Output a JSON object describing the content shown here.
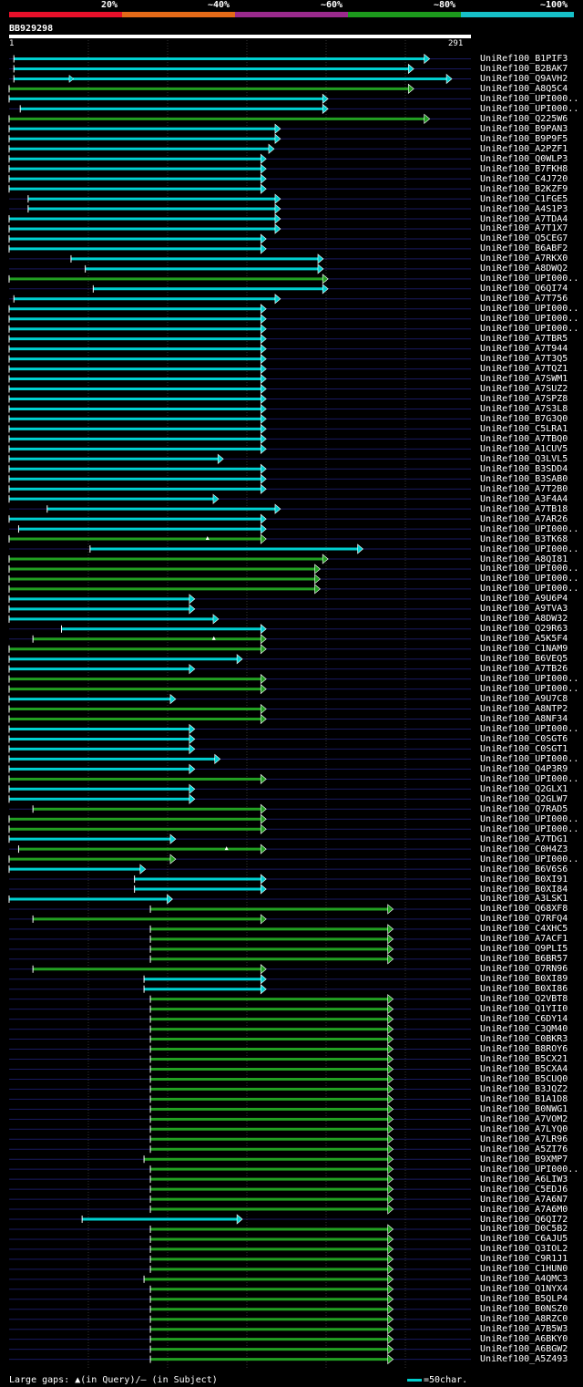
{
  "legend": {
    "segments": [
      {
        "label": "20%",
        "color": "#e8102a"
      },
      {
        "label": "~40%",
        "color": "#e46a18"
      },
      {
        "label": "~60%",
        "color": "#9a2a8c"
      },
      {
        "label": "~80%",
        "color": "#1c9a1c"
      },
      {
        "label": "~100%",
        "color": "#16c0c8"
      }
    ]
  },
  "query": {
    "name": "BB929298",
    "start": "1",
    "end": "291"
  },
  "colors": {
    "cyan": "#00d0d0",
    "green": "#22a022",
    "grid": "#1a1a60",
    "gridline": "#333333"
  },
  "chart_data": {
    "type": "alignment",
    "query_length": 291,
    "hits": [
      {
        "name": "UniRef100_B1PIF3",
        "start": 4,
        "end": 266,
        "color": "cyan"
      },
      {
        "name": "UniRef100_B2BAK7",
        "start": 4,
        "end": 256,
        "color": "cyan"
      },
      {
        "name": "UniRef100_Q9AVH2",
        "start": 4,
        "end": 280,
        "color": "cyan",
        "tick": 40
      },
      {
        "name": "UniRef100_A8Q5C4",
        "start": 1,
        "end": 256,
        "color": "green"
      },
      {
        "name": "UniRef100_UPI000..",
        "start": 1,
        "end": 202,
        "color": "cyan"
      },
      {
        "name": "UniRef100_UPI000..",
        "start": 8,
        "end": 202,
        "color": "cyan"
      },
      {
        "name": "UniRef100_Q225W6",
        "start": 1,
        "end": 266,
        "color": "green"
      },
      {
        "name": "UniRef100_B9PAN3",
        "start": 1,
        "end": 172,
        "color": "cyan"
      },
      {
        "name": "UniRef100_B9P9F5",
        "start": 1,
        "end": 172,
        "color": "cyan"
      },
      {
        "name": "UniRef100_A2PZF1",
        "start": 1,
        "end": 168,
        "color": "cyan"
      },
      {
        "name": "UniRef100_Q0WLP3",
        "start": 1,
        "end": 163,
        "color": "cyan"
      },
      {
        "name": "UniRef100_B7FKH8",
        "start": 1,
        "end": 163,
        "color": "cyan"
      },
      {
        "name": "UniRef100_C4J720",
        "start": 1,
        "end": 163,
        "color": "cyan"
      },
      {
        "name": "UniRef100_B2KZF9",
        "start": 1,
        "end": 163,
        "color": "cyan"
      },
      {
        "name": "UniRef100_C1FGE5",
        "start": 13,
        "end": 172,
        "color": "cyan"
      },
      {
        "name": "UniRef100_A4S1P3",
        "start": 13,
        "end": 172,
        "color": "cyan"
      },
      {
        "name": "UniRef100_A7TDA4",
        "start": 1,
        "end": 172,
        "color": "cyan"
      },
      {
        "name": "UniRef100_A7T1X7",
        "start": 1,
        "end": 172,
        "color": "cyan"
      },
      {
        "name": "UniRef100_Q5CEG7",
        "start": 1,
        "end": 163,
        "color": "cyan"
      },
      {
        "name": "UniRef100_B6ABF2",
        "start": 1,
        "end": 163,
        "color": "cyan"
      },
      {
        "name": "UniRef100_A7RKX0",
        "start": 40,
        "end": 199,
        "color": "cyan"
      },
      {
        "name": "UniRef100_A8DWQ2",
        "start": 49,
        "end": 199,
        "color": "cyan"
      },
      {
        "name": "UniRef100_UPI000..",
        "start": 1,
        "end": 202,
        "color": "green"
      },
      {
        "name": "UniRef100_Q6QI74",
        "start": 54,
        "end": 202,
        "color": "cyan"
      },
      {
        "name": "UniRef100_A7T756",
        "start": 4,
        "end": 172,
        "color": "cyan"
      },
      {
        "name": "UniRef100_UPI000..",
        "start": 1,
        "end": 163,
        "color": "cyan"
      },
      {
        "name": "UniRef100_UPI000..",
        "start": 1,
        "end": 163,
        "color": "cyan"
      },
      {
        "name": "UniRef100_UPI000..",
        "start": 1,
        "end": 163,
        "color": "cyan"
      },
      {
        "name": "UniRef100_A7TBR5",
        "start": 1,
        "end": 163,
        "color": "cyan"
      },
      {
        "name": "UniRef100_A7T944",
        "start": 1,
        "end": 163,
        "color": "cyan"
      },
      {
        "name": "UniRef100_A7T3Q5",
        "start": 1,
        "end": 163,
        "color": "cyan"
      },
      {
        "name": "UniRef100_A7TQZ1",
        "start": 1,
        "end": 163,
        "color": "cyan"
      },
      {
        "name": "UniRef100_A7SWM1",
        "start": 1,
        "end": 163,
        "color": "cyan"
      },
      {
        "name": "UniRef100_A7SUZ2",
        "start": 1,
        "end": 163,
        "color": "cyan"
      },
      {
        "name": "UniRef100_A7SPZ8",
        "start": 1,
        "end": 163,
        "color": "cyan"
      },
      {
        "name": "UniRef100_A7S3L8",
        "start": 1,
        "end": 163,
        "color": "cyan"
      },
      {
        "name": "UniRef100_B7G3Q0",
        "start": 1,
        "end": 163,
        "color": "cyan"
      },
      {
        "name": "UniRef100_C5LRA1",
        "start": 1,
        "end": 163,
        "color": "cyan"
      },
      {
        "name": "UniRef100_A7TBQ0",
        "start": 1,
        "end": 163,
        "color": "cyan"
      },
      {
        "name": "UniRef100_A1CUV5",
        "start": 1,
        "end": 163,
        "color": "cyan"
      },
      {
        "name": "UniRef100_Q3LVL5",
        "start": 1,
        "end": 136,
        "color": "cyan"
      },
      {
        "name": "UniRef100_B3SDD4",
        "start": 1,
        "end": 163,
        "color": "cyan"
      },
      {
        "name": "UniRef100_B3SAB0",
        "start": 1,
        "end": 163,
        "color": "cyan"
      },
      {
        "name": "UniRef100_A7T2B0",
        "start": 1,
        "end": 163,
        "color": "cyan"
      },
      {
        "name": "UniRef100_A3F4A4",
        "start": 1,
        "end": 133,
        "color": "cyan"
      },
      {
        "name": "UniRef100_A7TB18",
        "start": 25,
        "end": 172,
        "color": "cyan"
      },
      {
        "name": "UniRef100_A7AR26",
        "start": 1,
        "end": 163,
        "color": "cyan"
      },
      {
        "name": "UniRef100_UPI000..",
        "start": 7,
        "end": 163,
        "color": "cyan"
      },
      {
        "name": "UniRef100_B3TK68",
        "start": 1,
        "end": 163,
        "color": "green",
        "mark": 126
      },
      {
        "name": "UniRef100_UPI000..",
        "start": 52,
        "end": 224,
        "color": "cyan"
      },
      {
        "name": "UniRef100_A8QI81",
        "start": 1,
        "end": 202,
        "color": "green"
      },
      {
        "name": "UniRef100_UPI000..",
        "start": 1,
        "end": 197,
        "color": "green"
      },
      {
        "name": "UniRef100_UPI000..",
        "start": 1,
        "end": 197,
        "color": "green"
      },
      {
        "name": "UniRef100_UPI000..",
        "start": 1,
        "end": 197,
        "color": "green"
      },
      {
        "name": "UniRef100_A9U6P4",
        "start": 1,
        "end": 118,
        "color": "cyan"
      },
      {
        "name": "UniRef100_A9TVA3",
        "start": 1,
        "end": 118,
        "color": "cyan"
      },
      {
        "name": "UniRef100_A8DW32",
        "start": 1,
        "end": 133,
        "color": "cyan"
      },
      {
        "name": "UniRef100_Q29R63",
        "start": 34,
        "end": 163,
        "color": "cyan"
      },
      {
        "name": "UniRef100_A5K5F4",
        "start": 16,
        "end": 163,
        "color": "green",
        "mark": 130
      },
      {
        "name": "UniRef100_C1NAM9",
        "start": 1,
        "end": 163,
        "color": "green"
      },
      {
        "name": "UniRef100_B6VEQ5",
        "start": 1,
        "end": 148,
        "color": "cyan"
      },
      {
        "name": "UniRef100_A7TB26",
        "start": 1,
        "end": 118,
        "color": "cyan"
      },
      {
        "name": "UniRef100_UPI000..",
        "start": 1,
        "end": 163,
        "color": "green"
      },
      {
        "name": "UniRef100_UPI000..",
        "start": 1,
        "end": 163,
        "color": "green"
      },
      {
        "name": "UniRef100_A9U7C8",
        "start": 1,
        "end": 106,
        "color": "cyan"
      },
      {
        "name": "UniRef100_A8NTP2",
        "start": 1,
        "end": 163,
        "color": "green"
      },
      {
        "name": "UniRef100_A8NF34",
        "start": 1,
        "end": 163,
        "color": "green"
      },
      {
        "name": "UniRef100_UPI000..",
        "start": 1,
        "end": 118,
        "color": "cyan"
      },
      {
        "name": "UniRef100_C0SGT6",
        "start": 1,
        "end": 118,
        "color": "cyan"
      },
      {
        "name": "UniRef100_C0SGT1",
        "start": 1,
        "end": 118,
        "color": "cyan"
      },
      {
        "name": "UniRef100_UPI000..",
        "start": 1,
        "end": 134,
        "color": "cyan"
      },
      {
        "name": "UniRef100_Q4P3R9",
        "start": 1,
        "end": 118,
        "color": "cyan"
      },
      {
        "name": "UniRef100_UPI000..",
        "start": 1,
        "end": 163,
        "color": "green"
      },
      {
        "name": "UniRef100_Q2GLX1",
        "start": 1,
        "end": 118,
        "color": "cyan"
      },
      {
        "name": "UniRef100_Q2GLW7",
        "start": 1,
        "end": 118,
        "color": "cyan"
      },
      {
        "name": "UniRef100_Q7RAD5",
        "start": 16,
        "end": 163,
        "color": "green"
      },
      {
        "name": "UniRef100_UPI000..",
        "start": 1,
        "end": 163,
        "color": "green"
      },
      {
        "name": "UniRef100_UPI000..",
        "start": 1,
        "end": 163,
        "color": "green"
      },
      {
        "name": "UniRef100_A7TDG1",
        "start": 1,
        "end": 106,
        "color": "cyan"
      },
      {
        "name": "UniRef100_C0H4Z3",
        "start": 7,
        "end": 163,
        "color": "green",
        "mark": 138
      },
      {
        "name": "UniRef100_UPI000..",
        "start": 1,
        "end": 106,
        "color": "green"
      },
      {
        "name": "UniRef100_B6V6S6",
        "start": 1,
        "end": 87,
        "color": "cyan"
      },
      {
        "name": "UniRef100_B0XI91",
        "start": 80,
        "end": 163,
        "color": "cyan"
      },
      {
        "name": "UniRef100_B0XI84",
        "start": 80,
        "end": 163,
        "color": "cyan"
      },
      {
        "name": "UniRef100_A3LSK1",
        "start": 1,
        "end": 104,
        "color": "cyan"
      },
      {
        "name": "UniRef100_Q68XF8",
        "start": 90,
        "end": 243,
        "color": "green"
      },
      {
        "name": "UniRef100_Q7RFQ4",
        "start": 16,
        "end": 163,
        "color": "green"
      },
      {
        "name": "UniRef100_C4XHC5",
        "start": 90,
        "end": 243,
        "color": "green"
      },
      {
        "name": "UniRef100_A7ACF1",
        "start": 90,
        "end": 243,
        "color": "green"
      },
      {
        "name": "UniRef100_Q9PLI5",
        "start": 90,
        "end": 243,
        "color": "green"
      },
      {
        "name": "UniRef100_B6BR57",
        "start": 90,
        "end": 243,
        "color": "green"
      },
      {
        "name": "UniRef100_Q7RN96",
        "start": 16,
        "end": 163,
        "color": "green"
      },
      {
        "name": "UniRef100_B0XI89",
        "start": 86,
        "end": 163,
        "color": "cyan"
      },
      {
        "name": "UniRef100_B0XI86",
        "start": 86,
        "end": 163,
        "color": "cyan"
      },
      {
        "name": "UniRef100_Q2VBT8",
        "start": 90,
        "end": 243,
        "color": "green"
      },
      {
        "name": "UniRef100_Q1YII0",
        "start": 90,
        "end": 243,
        "color": "green"
      },
      {
        "name": "UniRef100_C6DY14",
        "start": 90,
        "end": 243,
        "color": "green"
      },
      {
        "name": "UniRef100_C3QM40",
        "start": 90,
        "end": 243,
        "color": "green"
      },
      {
        "name": "UniRef100_C0BKR3",
        "start": 90,
        "end": 243,
        "color": "green"
      },
      {
        "name": "UniRef100_B8ROY6",
        "start": 90,
        "end": 243,
        "color": "green"
      },
      {
        "name": "UniRef100_B5CX21",
        "start": 90,
        "end": 243,
        "color": "green"
      },
      {
        "name": "UniRef100_B5CXA4",
        "start": 90,
        "end": 243,
        "color": "green"
      },
      {
        "name": "UniRef100_B5CUQ0",
        "start": 90,
        "end": 243,
        "color": "green"
      },
      {
        "name": "UniRef100_B3JQZ2",
        "start": 90,
        "end": 243,
        "color": "green"
      },
      {
        "name": "UniRef100_B1A1D8",
        "start": 90,
        "end": 243,
        "color": "green"
      },
      {
        "name": "UniRef100_B0NWG1",
        "start": 90,
        "end": 243,
        "color": "green"
      },
      {
        "name": "UniRef100_A7VOM2",
        "start": 90,
        "end": 243,
        "color": "green"
      },
      {
        "name": "UniRef100_A7LYQ0",
        "start": 90,
        "end": 243,
        "color": "green"
      },
      {
        "name": "UniRef100_A7LR96",
        "start": 90,
        "end": 243,
        "color": "green"
      },
      {
        "name": "UniRef100_A5ZI76",
        "start": 90,
        "end": 243,
        "color": "green"
      },
      {
        "name": "UniRef100_B9XMP7",
        "start": 86,
        "end": 243,
        "color": "green"
      },
      {
        "name": "UniRef100_UPI000..",
        "start": 90,
        "end": 243,
        "color": "green"
      },
      {
        "name": "UniRef100_A6LIW3",
        "start": 90,
        "end": 243,
        "color": "green"
      },
      {
        "name": "UniRef100_C5EDJ6",
        "start": 90,
        "end": 243,
        "color": "green"
      },
      {
        "name": "UniRef100_A7A6N7",
        "start": 90,
        "end": 243,
        "color": "green"
      },
      {
        "name": "UniRef100_A7A6M0",
        "start": 90,
        "end": 243,
        "color": "green"
      },
      {
        "name": "UniRef100_Q6QI72",
        "start": 47,
        "end": 148,
        "color": "cyan"
      },
      {
        "name": "UniRef100_D0C5B2",
        "start": 90,
        "end": 243,
        "color": "green"
      },
      {
        "name": "UniRef100_C6AJU5",
        "start": 90,
        "end": 243,
        "color": "green"
      },
      {
        "name": "UniRef100_Q3IOL2",
        "start": 90,
        "end": 243,
        "color": "green"
      },
      {
        "name": "UniRef100_C9R1J1",
        "start": 90,
        "end": 243,
        "color": "green"
      },
      {
        "name": "UniRef100_C1HUN0",
        "start": 90,
        "end": 243,
        "color": "green"
      },
      {
        "name": "UniRef100_A4QMC3",
        "start": 86,
        "end": 243,
        "color": "green"
      },
      {
        "name": "UniRef100_Q1NYX4",
        "start": 90,
        "end": 243,
        "color": "green"
      },
      {
        "name": "UniRef100_B5QLP4",
        "start": 90,
        "end": 243,
        "color": "green"
      },
      {
        "name": "UniRef100_B0NSZ0",
        "start": 90,
        "end": 243,
        "color": "green"
      },
      {
        "name": "UniRef100_A8RZC0",
        "start": 90,
        "end": 243,
        "color": "green"
      },
      {
        "name": "UniRef100_A7B5W3",
        "start": 90,
        "end": 243,
        "color": "green"
      },
      {
        "name": "UniRef100_A6BKY0",
        "start": 90,
        "end": 243,
        "color": "green"
      },
      {
        "name": "UniRef100_A6BGW2",
        "start": 90,
        "end": 243,
        "color": "green"
      },
      {
        "name": "UniRef100_A5Z493",
        "start": 90,
        "end": 243,
        "color": "green"
      }
    ]
  },
  "footer": {
    "gaps_label": "Large gaps: ▲(in Query)/– (in Subject)",
    "scale_label": "=50char."
  }
}
